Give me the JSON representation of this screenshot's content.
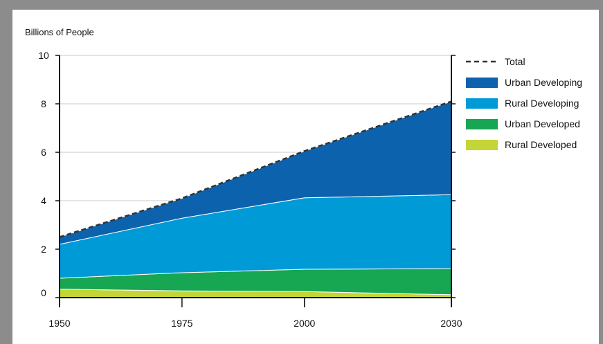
{
  "chart_data": {
    "type": "area",
    "stacked": true,
    "ylabel": "Billions of People",
    "x": [
      1950,
      1975,
      2000,
      2030
    ],
    "x_ticks": [
      "1950",
      "1975",
      "2000",
      "2030"
    ],
    "y_ticks": [
      "0",
      "2",
      "4",
      "6",
      "8",
      "10"
    ],
    "ylim": [
      0,
      10
    ],
    "grid": true,
    "legend_position": "right",
    "series": [
      {
        "name": "Rural Developed",
        "color": "#c3d537",
        "values": [
          0.35,
          0.28,
          0.25,
          0.12
        ]
      },
      {
        "name": "Urban Developed",
        "color": "#17a652",
        "values": [
          0.45,
          0.75,
          0.92,
          1.08
        ]
      },
      {
        "name": "Rural Developing",
        "color": "#009ad7",
        "values": [
          1.4,
          2.25,
          2.95,
          3.05
        ]
      },
      {
        "name": "Urban Developing",
        "color": "#0d62ae",
        "values": [
          0.3,
          0.82,
          1.93,
          3.85
        ]
      }
    ],
    "total": {
      "name": "Total",
      "values": [
        2.5,
        4.1,
        6.05,
        8.1
      ]
    },
    "legend": [
      "Total",
      "Urban Developing",
      "Rural Developing",
      "Urban Developed",
      "Rural Developed"
    ]
  }
}
